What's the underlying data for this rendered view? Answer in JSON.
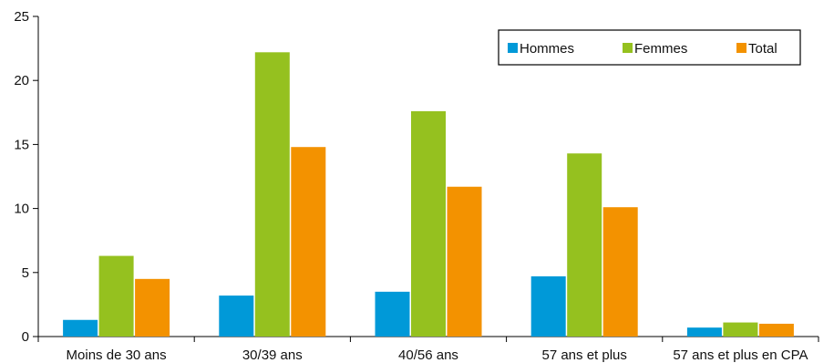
{
  "chart_data": {
    "type": "bar",
    "categories": [
      "Moins de 30 ans",
      "30/39 ans",
      "40/56 ans",
      "57 ans et plus",
      "57 ans et plus en CPA"
    ],
    "series": [
      {
        "name": "Hommes",
        "color": "#0099d8",
        "values": [
          1.3,
          3.2,
          3.5,
          4.7,
          0.7
        ]
      },
      {
        "name": "Femmes",
        "color": "#95c11f",
        "values": [
          6.3,
          22.2,
          17.6,
          14.3,
          1.1
        ]
      },
      {
        "name": "Total",
        "color": "#f39200",
        "values": [
          4.5,
          14.8,
          11.7,
          10.1,
          1.0
        ]
      }
    ],
    "ylim": [
      0,
      25
    ],
    "yticks": [
      0,
      5,
      10,
      15,
      20,
      25
    ],
    "title": "",
    "xlabel": "",
    "ylabel": "",
    "legend_position": "top-right",
    "grid": false
  }
}
